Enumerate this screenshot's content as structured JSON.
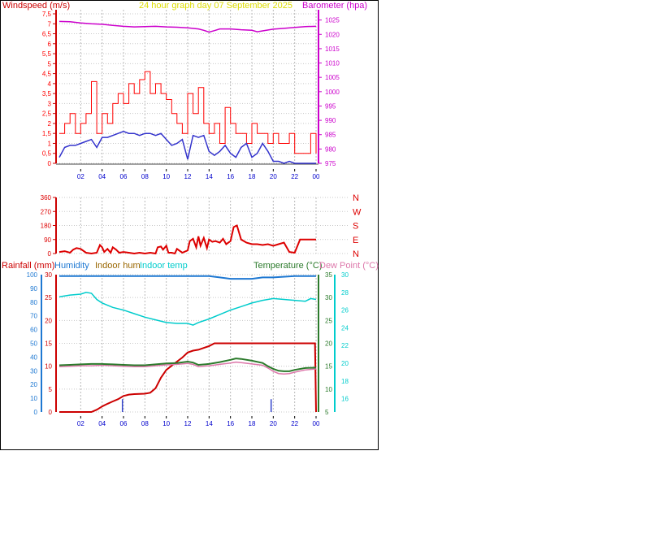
{
  "header": {
    "left_title": "Windspeed (m/s)",
    "center_title": "24 hour graph day   07 September 2025",
    "right_title": "Barometer (hpa)"
  },
  "colors": {
    "wind_gust": "#ff0000",
    "wind_avg": "#3333cc",
    "barometer": "#cc00cc",
    "direction": "#dd0000",
    "rain": "#cc0000",
    "humidity": "#1e78d2",
    "indoor_hum": "#996600",
    "indoor_temp": "#00cccc",
    "temperature": "#2b7a2b",
    "dew_point": "#dd77aa",
    "rain_rate": "#3344cc",
    "time_axis": "#0000cc"
  },
  "chart_data": [
    {
      "type": "line",
      "name_key": "wind",
      "x_ticks": [
        "02",
        "04",
        "06",
        "08",
        "10",
        "12",
        "14",
        "16",
        "18",
        "20",
        "22",
        "00"
      ],
      "x_range": [
        0,
        24
      ],
      "left_axis": {
        "label": "Windspeed (m/s)",
        "ticks": [
          "0",
          "0,5",
          "1",
          "1,5",
          "2",
          "2,5",
          "3",
          "3,5",
          "4",
          "4,5",
          "5",
          "5,5",
          "6",
          "6,5",
          "7",
          "7,5"
        ],
        "range": [
          0,
          8
        ]
      },
      "right_axis": {
        "label": "Barometer (hpa)",
        "ticks": [
          "975",
          "980",
          "985",
          "990",
          "995",
          "1000",
          "1005",
          "1010",
          "1015",
          "1020",
          "1025"
        ],
        "range": [
          975,
          1030
        ]
      },
      "series": [
        {
          "name": "Barometer (hpa)",
          "axis": "right",
          "x": [
            0,
            1,
            2,
            3,
            4,
            5,
            6,
            7,
            8,
            9,
            10,
            11,
            12,
            13,
            13.5,
            14,
            14.5,
            15,
            16,
            17,
            18,
            18.5,
            19,
            20,
            21,
            22,
            23,
            24
          ],
          "y": [
            1024.5,
            1024.4,
            1024.0,
            1023.7,
            1023.5,
            1023.1,
            1022.8,
            1022.6,
            1022.7,
            1022.8,
            1022.6,
            1022.5,
            1022.3,
            1021.9,
            1021.4,
            1020.8,
            1021.3,
            1021.9,
            1021.9,
            1021.6,
            1021.4,
            1020.9,
            1021.2,
            1021.8,
            1022.1,
            1022.4,
            1022.7,
            1022.8
          ]
        },
        {
          "name": "Wind gust",
          "axis": "left",
          "x": [
            0,
            0.5,
            1,
            1.5,
            2,
            2.5,
            3,
            3.5,
            4,
            4.5,
            5,
            5.5,
            6,
            6.5,
            7,
            7.5,
            8,
            8.5,
            9,
            9.5,
            10,
            10.5,
            11,
            11.5,
            12,
            12.5,
            13,
            13.5,
            14,
            14.5,
            15,
            15.5,
            16,
            16.5,
            17,
            17.5,
            18,
            18.5,
            19,
            19.5,
            20,
            20.5,
            21,
            21.5,
            22,
            22.5,
            23,
            23.5,
            24
          ],
          "y": [
            1.5,
            2.0,
            2.5,
            1.5,
            2.0,
            2.5,
            4.1,
            1.5,
            2.5,
            2.0,
            3.0,
            3.5,
            3.0,
            4.0,
            3.5,
            4.2,
            4.6,
            3.5,
            4.0,
            3.5,
            3.2,
            2.5,
            2.0,
            1.5,
            3.5,
            2.5,
            3.8,
            2.0,
            1.5,
            2.0,
            1.0,
            2.8,
            2.0,
            1.5,
            1.5,
            1.0,
            2.0,
            1.5,
            1.5,
            1.0,
            1.5,
            1.0,
            1.0,
            1.5,
            0.5,
            0.5,
            0.5,
            1.5,
            0.5
          ]
        },
        {
          "name": "Wind average",
          "axis": "left",
          "x": [
            0,
            0.5,
            1,
            1.5,
            2,
            2.5,
            3,
            3.5,
            4,
            4.5,
            5,
            5.5,
            6,
            6.5,
            7,
            7.5,
            8,
            8.5,
            9,
            9.5,
            10,
            10.5,
            11,
            11.5,
            12,
            12.5,
            13,
            13.5,
            14,
            14.5,
            15,
            15.5,
            16,
            16.5,
            17,
            17.5,
            18,
            18.5,
            19,
            19.5,
            20,
            20.5,
            21,
            21.5,
            22,
            22.5,
            23,
            23.5,
            24
          ],
          "y": [
            0.3,
            0.8,
            0.9,
            0.9,
            1.0,
            1.1,
            1.2,
            0.8,
            1.3,
            1.3,
            1.4,
            1.5,
            1.6,
            1.5,
            1.5,
            1.4,
            1.5,
            1.5,
            1.4,
            1.5,
            1.2,
            0.9,
            1.0,
            1.2,
            0.2,
            1.4,
            1.3,
            1.4,
            0.6,
            0.4,
            0.6,
            0.9,
            0.5,
            0.3,
            0.8,
            1.0,
            0.3,
            0.5,
            1.0,
            0.6,
            0.1,
            0.1,
            0.0,
            0.1,
            0.0,
            0.0,
            0.0,
            0.0,
            0.0
          ]
        }
      ]
    },
    {
      "type": "line",
      "name_key": "direction",
      "x_ticks": [
        "02",
        "04",
        "06",
        "08",
        "10",
        "12",
        "14",
        "16",
        "18",
        "20",
        "22",
        "00"
      ],
      "x_range": [
        0,
        24
      ],
      "left_axis": {
        "ticks": [
          "0",
          "90",
          "180",
          "270",
          "360"
        ],
        "range": [
          0,
          360
        ]
      },
      "right_axis": {
        "ticks": [
          "N",
          "E",
          "S",
          "W",
          "N"
        ]
      },
      "series": [
        {
          "name": "Wind direction",
          "x": [
            0,
            0.5,
            1,
            1.3,
            1.6,
            2.0,
            2.5,
            3.0,
            3.5,
            3.8,
            4.0,
            4.2,
            4.5,
            4.8,
            5.0,
            5.3,
            5.6,
            6.0,
            6.5,
            7.0,
            7.5,
            8.0,
            8.5,
            9.0,
            9.2,
            9.5,
            9.7,
            10.0,
            10.2,
            10.5,
            10.8,
            11.0,
            11.5,
            12.0,
            12.2,
            12.5,
            12.8,
            13.0,
            13.2,
            13.5,
            13.8,
            14.0,
            14.3,
            14.6,
            15.0,
            15.3,
            15.6,
            16.0,
            16.3,
            16.6,
            17.0,
            17.5,
            18.0,
            18.5,
            19.0,
            19.5,
            20.0,
            20.5,
            21.0,
            21.5,
            22.0,
            22.5,
            23.0,
            23.5,
            24.0
          ],
          "y": [
            10,
            15,
            5,
            25,
            35,
            30,
            5,
            0,
            5,
            55,
            40,
            10,
            30,
            5,
            40,
            25,
            5,
            10,
            5,
            0,
            5,
            0,
            5,
            0,
            40,
            45,
            25,
            50,
            5,
            5,
            0,
            30,
            5,
            20,
            80,
            95,
            40,
            110,
            50,
            100,
            35,
            90,
            75,
            80,
            70,
            95,
            60,
            80,
            170,
            180,
            90,
            70,
            60,
            60,
            55,
            60,
            50,
            60,
            70,
            10,
            5,
            90,
            90,
            90,
            90
          ]
        }
      ]
    },
    {
      "type": "line",
      "name_key": "temperature",
      "x_ticks": [
        "02",
        "04",
        "06",
        "08",
        "10",
        "12",
        "14",
        "16",
        "18",
        "20",
        "22",
        "00"
      ],
      "x_range": [
        0,
        24
      ],
      "legend": [
        "Rainfall (mm)",
        "Humidity",
        "Indoor hum",
        "Indoor temp",
        "Temperature (°C)",
        "Dew Point (°C)"
      ],
      "rain_axis": {
        "label": "Rainfall (mm)",
        "ticks": [
          "0",
          "5",
          "10",
          "15",
          "20",
          "25",
          "30"
        ],
        "range": [
          0,
          30
        ]
      },
      "humidity_axis": {
        "ticks": [
          "0",
          "10",
          "20",
          "30",
          "40",
          "50",
          "60",
          "70",
          "80",
          "90",
          "100"
        ],
        "range": [
          0,
          100
        ]
      },
      "temp_axis": {
        "label": "Temperature (°C)",
        "ticks": [
          "5",
          "10",
          "15",
          "20",
          "25",
          "30",
          "35"
        ],
        "range": [
          5,
          35
        ]
      },
      "indoor_axis": {
        "label": "Dew Point (°C)",
        "ticks": [
          "16",
          "18",
          "20",
          "22",
          "24",
          "26",
          "28",
          "30"
        ],
        "range": [
          14.5,
          30
        ]
      },
      "series": [
        {
          "name": "Humidity",
          "axis": "humidity",
          "x": [
            0,
            2,
            4,
            6,
            8,
            10,
            12,
            14,
            15,
            16,
            17,
            18,
            19,
            20,
            22,
            23,
            24
          ],
          "y": [
            99,
            99,
            99,
            99,
            99,
            99,
            99,
            99,
            98,
            97,
            97,
            97,
            98,
            98,
            99,
            99,
            99
          ]
        },
        {
          "name": "Indoor temp",
          "axis": "indoor",
          "x": [
            0,
            1,
            2,
            2.5,
            3,
            3.5,
            4,
            5,
            6,
            7,
            8,
            9,
            10,
            11,
            12,
            12.5,
            13,
            14,
            15,
            16,
            17,
            18,
            19,
            20,
            21,
            22,
            23,
            23.5,
            24
          ],
          "y": [
            27.5,
            27.7,
            27.8,
            28.0,
            27.9,
            27.2,
            26.8,
            26.3,
            26.0,
            25.6,
            25.2,
            24.9,
            24.6,
            24.5,
            24.5,
            24.3,
            24.6,
            25.0,
            25.5,
            26.0,
            26.4,
            26.8,
            27.1,
            27.3,
            27.2,
            27.1,
            27.0,
            27.3,
            27.2
          ]
        },
        {
          "name": "Rainfall (mm)",
          "axis": "rain",
          "x": [
            0,
            1,
            2,
            3,
            3.5,
            4,
            4.5,
            5,
            5.5,
            6,
            6.5,
            7,
            8,
            8.5,
            9,
            9.5,
            10,
            10.5,
            11,
            11.5,
            12,
            12.5,
            13,
            14,
            14.5,
            15,
            16,
            17,
            18,
            19,
            20,
            21,
            22,
            23,
            23.9,
            24
          ],
          "y": [
            0,
            0,
            0,
            0,
            0.5,
            1.2,
            1.8,
            2.3,
            2.8,
            3.5,
            3.8,
            3.9,
            4.0,
            4.2,
            5.2,
            7.5,
            9.2,
            10.1,
            11.0,
            11.9,
            13.0,
            13.4,
            13.6,
            14.4,
            15.0,
            15.0,
            15.0,
            15.0,
            15.0,
            15.0,
            15.0,
            15.0,
            15.0,
            15.0,
            15.0,
            0
          ]
        },
        {
          "name": "Rain rate",
          "axis": "rain",
          "bars": true,
          "x": [
            5.9,
            19.8
          ],
          "y": [
            2.8,
            2.8
          ]
        },
        {
          "name": "Temperature (°C)",
          "axis": "temp",
          "x": [
            0,
            1,
            2,
            3,
            4,
            5,
            6,
            7,
            8,
            9,
            10,
            11,
            12,
            12.5,
            13,
            14,
            15,
            16,
            16.5,
            17,
            18,
            19,
            19.5,
            20,
            20.5,
            21,
            21.5,
            22,
            23,
            24
          ],
          "y": [
            15.2,
            15.3,
            15.4,
            15.5,
            15.5,
            15.4,
            15.3,
            15.2,
            15.2,
            15.4,
            15.6,
            15.7,
            16.0,
            15.8,
            15.3,
            15.5,
            15.9,
            16.4,
            16.7,
            16.6,
            16.2,
            15.7,
            15.0,
            14.4,
            14.0,
            13.9,
            13.9,
            14.2,
            14.6,
            14.7
          ]
        },
        {
          "name": "Dew Point (°C)",
          "axis": "temp",
          "x": [
            0,
            1,
            2,
            3,
            4,
            5,
            6,
            7,
            8,
            9,
            10,
            11,
            12,
            12.5,
            13,
            14,
            15,
            16,
            16.5,
            17,
            18,
            19,
            19.5,
            20,
            20.5,
            21,
            21.5,
            22,
            23,
            24
          ],
          "y": [
            14.9,
            15.0,
            15.1,
            15.1,
            15.2,
            15.1,
            15.0,
            14.9,
            14.9,
            15.1,
            15.3,
            15.4,
            15.6,
            15.4,
            14.9,
            15.1,
            15.4,
            15.7,
            15.9,
            15.8,
            15.5,
            15.2,
            14.6,
            13.9,
            13.4,
            13.3,
            13.4,
            13.7,
            14.2,
            14.4
          ]
        }
      ]
    }
  ]
}
